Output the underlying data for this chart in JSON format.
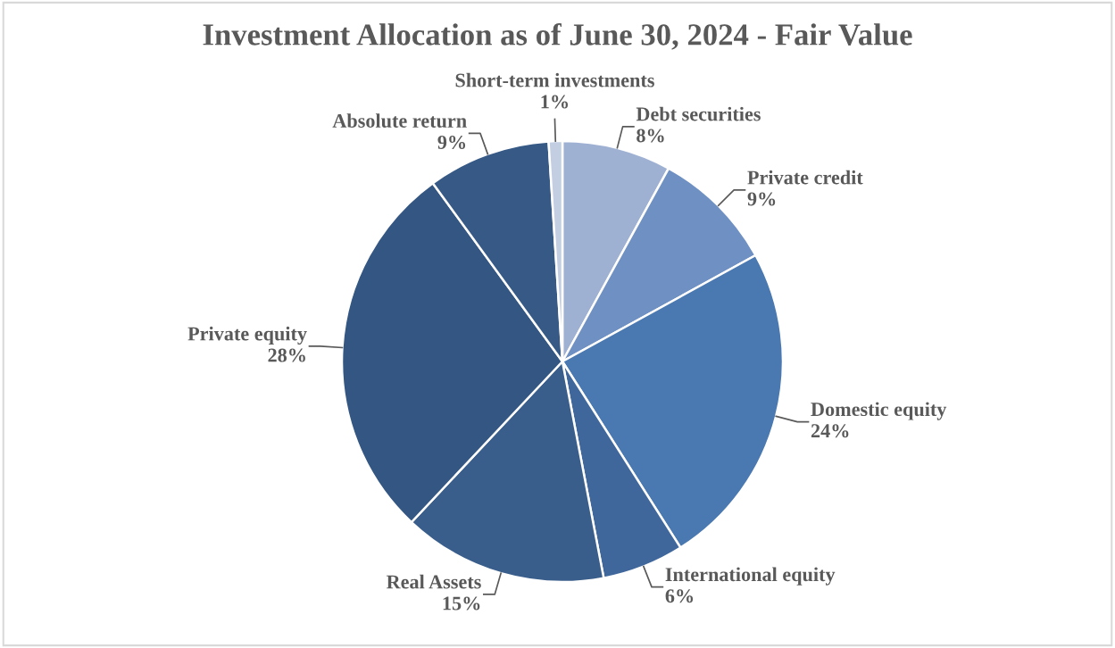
{
  "chart_data": {
    "type": "pie",
    "title": "Investment Allocation as of June 30, 2024 - Fair Value",
    "categories": [
      "Debt securities",
      "Private credit",
      "Domestic equity",
      "International equity",
      "Real Assets",
      "Private equity",
      "Absolute return",
      "Short-term investments"
    ],
    "values": [
      8,
      9,
      24,
      6,
      15,
      28,
      9,
      1
    ],
    "value_labels": [
      "8%",
      "9%",
      "24%",
      "6%",
      "15%",
      "28%",
      "9%",
      "1%"
    ],
    "colors": [
      "#9fb1d3",
      "#6f90c2",
      "#4a78b0",
      "#3f679c",
      "#3a5e8b",
      "#345682",
      "#365985",
      "#c3cee2"
    ],
    "legend": false
  }
}
